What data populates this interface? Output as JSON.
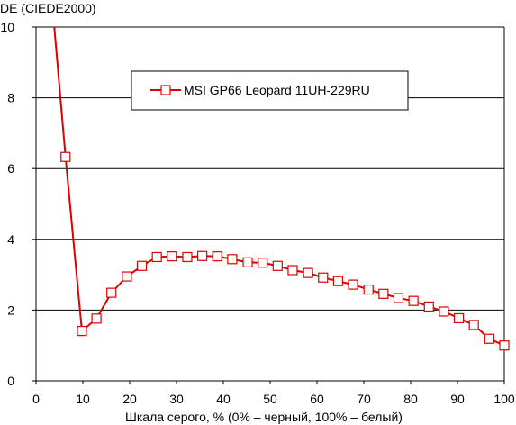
{
  "chart_data": {
    "type": "line",
    "title": "",
    "ylabel": "DE (CIEDE2000)",
    "xlabel": "Шкала серого, % (0% – черный, 100% – белый)",
    "xlim": [
      0,
      100
    ],
    "ylim": [
      0,
      10
    ],
    "x_ticks": [
      0,
      10,
      20,
      30,
      40,
      50,
      60,
      70,
      80,
      90,
      100
    ],
    "y_ticks": [
      0,
      2,
      4,
      6,
      8,
      10
    ],
    "grid": "horizontal",
    "legend_position": "top-center",
    "series": [
      {
        "name": "MSI GP66 Leopard 11UH-229RU",
        "color": "#dd0000",
        "marker": "square",
        "line_start": {
          "x": 3.9,
          "y": 10
        },
        "x": [
          6.3,
          9.8,
          12.9,
          16.1,
          19.4,
          22.6,
          25.8,
          29.0,
          32.3,
          35.5,
          38.7,
          41.9,
          45.2,
          48.4,
          51.6,
          54.8,
          58.1,
          61.3,
          64.5,
          67.7,
          71.0,
          74.2,
          77.4,
          80.6,
          83.9,
          87.1,
          90.3,
          93.5,
          96.8,
          100.0
        ],
        "values": [
          6.33,
          1.41,
          1.76,
          2.49,
          2.95,
          3.25,
          3.5,
          3.52,
          3.5,
          3.53,
          3.52,
          3.44,
          3.35,
          3.34,
          3.25,
          3.13,
          3.05,
          2.92,
          2.82,
          2.72,
          2.58,
          2.46,
          2.34,
          2.26,
          2.1,
          1.96,
          1.77,
          1.58,
          1.19,
          1.0
        ]
      }
    ]
  }
}
